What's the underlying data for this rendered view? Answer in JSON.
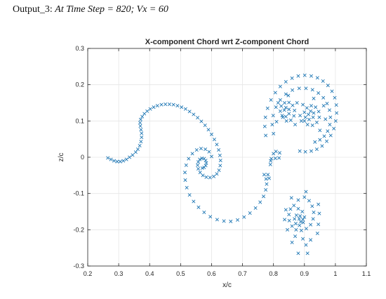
{
  "caption": {
    "label": "Output_3:",
    "description": "At Time Step = 820; Vx = 60"
  },
  "colors": {
    "marker": "#1f77b4",
    "axis": "#262626",
    "grid": "#e6e6e6",
    "background": "#ffffff"
  },
  "chart_data": {
    "type": "scatter",
    "marker": "x",
    "title": "X-component Chord wrt Z-component Chord",
    "xlabel": "x/c",
    "ylabel": "z/c",
    "xlim": [
      0.2,
      1.1
    ],
    "ylim": [
      -0.3,
      0.3
    ],
    "xticks": [
      0.2,
      0.3,
      0.4,
      0.5,
      0.6,
      0.7,
      0.8,
      0.9,
      1,
      1.1
    ],
    "yticks": [
      -0.3,
      -0.2,
      -0.1,
      0,
      0.1,
      0.2,
      0.3
    ],
    "xtick_labels": [
      "0.2",
      "0.3",
      "0.4",
      "0.5",
      "0.6",
      "0.7",
      "0.8",
      "0.9",
      "1",
      "1.1"
    ],
    "ytick_labels": [
      "-0.3",
      "-0.2",
      "-0.1",
      "0",
      "0.1",
      "0.2",
      "0.3"
    ],
    "grid": true,
    "series": [
      {
        "points": [
          [
            0.265,
            -0.002
          ],
          [
            0.275,
            -0.006
          ],
          [
            0.285,
            -0.01
          ],
          [
            0.295,
            -0.012
          ],
          [
            0.305,
            -0.012
          ],
          [
            0.315,
            -0.01
          ],
          [
            0.325,
            -0.006
          ],
          [
            0.335,
            0.0
          ],
          [
            0.345,
            0.006
          ],
          [
            0.355,
            0.014
          ],
          [
            0.362,
            0.022
          ],
          [
            0.368,
            0.032
          ],
          [
            0.372,
            0.043
          ],
          [
            0.374,
            0.055
          ],
          [
            0.374,
            0.066
          ],
          [
            0.372,
            0.076
          ],
          [
            0.37,
            0.086
          ],
          [
            0.369,
            0.095
          ],
          [
            0.371,
            0.104
          ],
          [
            0.376,
            0.112
          ],
          [
            0.383,
            0.12
          ],
          [
            0.392,
            0.127
          ],
          [
            0.402,
            0.133
          ],
          [
            0.413,
            0.138
          ],
          [
            0.425,
            0.142
          ],
          [
            0.438,
            0.145
          ],
          [
            0.451,
            0.146
          ],
          [
            0.464,
            0.146
          ],
          [
            0.477,
            0.145
          ],
          [
            0.49,
            0.142
          ],
          [
            0.503,
            0.138
          ],
          [
            0.516,
            0.133
          ],
          [
            0.529,
            0.126
          ],
          [
            0.542,
            0.118
          ],
          [
            0.555,
            0.109
          ],
          [
            0.567,
            0.099
          ],
          [
            0.579,
            0.088
          ],
          [
            0.59,
            0.076
          ],
          [
            0.6,
            0.063
          ],
          [
            0.609,
            0.049
          ],
          [
            0.617,
            0.035
          ],
          [
            0.623,
            0.02
          ],
          [
            0.627,
            0.005
          ],
          [
            0.629,
            -0.009
          ],
          [
            0.628,
            -0.023
          ],
          [
            0.624,
            -0.036
          ],
          [
            0.617,
            -0.046
          ],
          [
            0.607,
            -0.053
          ],
          [
            0.595,
            -0.056
          ],
          [
            0.583,
            -0.055
          ],
          [
            0.572,
            -0.05
          ],
          [
            0.563,
            -0.042
          ],
          [
            0.557,
            -0.032
          ],
          [
            0.555,
            -0.022
          ],
          [
            0.557,
            -0.013
          ],
          [
            0.562,
            -0.006
          ],
          [
            0.569,
            -0.003
          ],
          [
            0.576,
            -0.004
          ],
          [
            0.581,
            -0.009
          ],
          [
            0.583,
            -0.016
          ],
          [
            0.581,
            -0.023
          ],
          [
            0.576,
            -0.028
          ],
          [
            0.57,
            -0.03
          ],
          [
            0.6,
            0.002
          ],
          [
            0.592,
            0.015
          ],
          [
            0.58,
            0.022
          ],
          [
            0.566,
            0.024
          ],
          [
            0.552,
            0.02
          ],
          [
            0.538,
            0.01
          ],
          [
            0.526,
            -0.004
          ],
          [
            0.518,
            -0.022
          ],
          [
            0.514,
            -0.042
          ],
          [
            0.515,
            -0.063
          ],
          [
            0.52,
            -0.084
          ],
          [
            0.529,
            -0.104
          ],
          [
            0.542,
            -0.122
          ],
          [
            0.558,
            -0.138
          ],
          [
            0.576,
            -0.152
          ],
          [
            0.596,
            -0.164
          ],
          [
            0.618,
            -0.172
          ],
          [
            0.64,
            -0.176
          ],
          [
            0.662,
            -0.177
          ],
          [
            0.684,
            -0.173
          ],
          [
            0.705,
            -0.165
          ],
          [
            0.724,
            -0.154
          ],
          [
            0.742,
            -0.14
          ],
          [
            0.757,
            -0.124
          ],
          [
            0.768,
            -0.108
          ],
          [
            0.775,
            -0.09
          ],
          [
            0.778,
            -0.074
          ],
          [
            0.776,
            -0.06
          ],
          [
            0.77,
            -0.048
          ],
          [
            0.782,
            -0.048
          ],
          [
            0.786,
            -0.058
          ],
          [
            0.79,
            -0.02
          ],
          [
            0.793,
            -0.004
          ],
          [
            0.8,
            0.01
          ],
          [
            0.808,
            0.016
          ],
          [
            0.82,
            0.012
          ],
          [
            0.818,
            -0.002
          ],
          [
            0.806,
            -0.003
          ],
          [
            0.791,
            -0.01
          ],
          [
            0.775,
            0.06
          ],
          [
            0.772,
            0.085
          ],
          [
            0.774,
            0.11
          ],
          [
            0.781,
            0.135
          ],
          [
            0.792,
            0.158
          ],
          [
            0.806,
            0.178
          ],
          [
            0.822,
            0.195
          ],
          [
            0.84,
            0.208
          ],
          [
            0.86,
            0.218
          ],
          [
            0.88,
            0.224
          ],
          [
            0.901,
            0.226
          ],
          [
            0.922,
            0.224
          ],
          [
            0.942,
            0.219
          ],
          [
            0.96,
            0.21
          ],
          [
            0.976,
            0.198
          ],
          [
            0.989,
            0.182
          ],
          [
            0.998,
            0.164
          ],
          [
            1.003,
            0.144
          ],
          [
            1.004,
            0.122
          ],
          [
            1.001,
            0.1
          ],
          [
            0.995,
            0.079
          ],
          [
            0.985,
            0.06
          ],
          [
            0.972,
            0.044
          ],
          [
            0.957,
            0.031
          ],
          [
            0.94,
            0.022
          ],
          [
            0.922,
            0.017
          ],
          [
            0.903,
            0.015
          ],
          [
            0.885,
            0.017
          ],
          [
            0.8,
            0.065
          ],
          [
            0.796,
            0.09
          ],
          [
            0.799,
            0.115
          ],
          [
            0.808,
            0.138
          ],
          [
            0.822,
            0.158
          ],
          [
            0.84,
            0.174
          ],
          [
            0.861,
            0.185
          ],
          [
            0.883,
            0.19
          ],
          [
            0.905,
            0.19
          ],
          [
            0.926,
            0.186
          ],
          [
            0.945,
            0.177
          ],
          [
            0.961,
            0.164
          ],
          [
            0.973,
            0.148
          ],
          [
            0.981,
            0.13
          ],
          [
            0.984,
            0.11
          ],
          [
            0.982,
            0.09
          ],
          [
            0.975,
            0.072
          ],
          [
            0.964,
            0.058
          ],
          [
            0.95,
            0.048
          ],
          [
            0.934,
            0.042
          ],
          [
            0.83,
            0.11
          ],
          [
            0.842,
            0.1
          ],
          [
            0.856,
            0.102
          ],
          [
            0.866,
            0.114
          ],
          [
            0.868,
            0.129
          ],
          [
            0.862,
            0.143
          ],
          [
            0.85,
            0.151
          ],
          [
            0.836,
            0.15
          ],
          [
            0.825,
            0.141
          ],
          [
            0.822,
            0.127
          ],
          [
            0.828,
            0.115
          ],
          [
            0.84,
            0.112
          ],
          [
            0.85,
            0.12
          ],
          [
            0.85,
            0.132
          ],
          [
            0.84,
            0.137
          ],
          [
            0.835,
            0.13
          ],
          [
            0.81,
            0.098
          ],
          [
            0.815,
            0.15
          ],
          [
            0.848,
            0.17
          ],
          [
            0.876,
            0.15
          ],
          [
            0.886,
            0.115
          ],
          [
            0.87,
            0.09
          ],
          [
            0.9,
            0.1
          ],
          [
            0.91,
            0.09
          ],
          [
            0.926,
            0.088
          ],
          [
            0.94,
            0.096
          ],
          [
            0.948,
            0.11
          ],
          [
            0.946,
            0.126
          ],
          [
            0.936,
            0.138
          ],
          [
            0.922,
            0.142
          ],
          [
            0.908,
            0.136
          ],
          [
            0.9,
            0.124
          ],
          [
            0.903,
            0.11
          ],
          [
            0.915,
            0.104
          ],
          [
            0.928,
            0.11
          ],
          [
            0.93,
            0.122
          ],
          [
            0.92,
            0.127
          ],
          [
            0.913,
            0.118
          ],
          [
            0.89,
            0.1
          ],
          [
            0.895,
            0.145
          ],
          [
            0.93,
            0.162
          ],
          [
            0.962,
            0.142
          ],
          [
            0.968,
            0.105
          ],
          [
            0.95,
            0.074
          ],
          [
            0.88,
            -0.118
          ],
          [
            0.9,
            -0.11
          ],
          [
            0.915,
            -0.12
          ],
          [
            0.925,
            -0.135
          ],
          [
            0.93,
            -0.152
          ],
          [
            0.928,
            -0.17
          ],
          [
            0.92,
            -0.186
          ],
          [
            0.906,
            -0.197
          ],
          [
            0.89,
            -0.202
          ],
          [
            0.873,
            -0.2
          ],
          [
            0.86,
            -0.19
          ],
          [
            0.851,
            -0.175
          ],
          [
            0.85,
            -0.158
          ],
          [
            0.855,
            -0.143
          ],
          [
            0.866,
            -0.133
          ],
          [
            0.88,
            -0.142
          ],
          [
            0.893,
            -0.15
          ],
          [
            0.9,
            -0.165
          ],
          [
            0.896,
            -0.18
          ],
          [
            0.884,
            -0.188
          ],
          [
            0.872,
            -0.183
          ],
          [
            0.868,
            -0.17
          ],
          [
            0.874,
            -0.16
          ],
          [
            0.886,
            -0.162
          ],
          [
            0.895,
            -0.172
          ],
          [
            0.888,
            -0.178
          ],
          [
            0.883,
            -0.17
          ],
          [
            0.948,
            -0.155
          ],
          [
            0.945,
            -0.185
          ],
          [
            0.942,
            -0.21
          ],
          [
            0.86,
            -0.235
          ],
          [
            0.905,
            -0.242
          ],
          [
            0.92,
            -0.228
          ],
          [
            0.895,
            -0.225
          ],
          [
            0.87,
            -0.218
          ],
          [
            0.845,
            -0.2
          ],
          [
            0.836,
            -0.172
          ],
          [
            0.84,
            -0.145
          ],
          [
            0.858,
            -0.112
          ],
          [
            0.905,
            -0.095
          ],
          [
            0.945,
            -0.13
          ],
          [
            0.88,
            -0.265
          ],
          [
            0.91,
            -0.265
          ]
        ]
      }
    ]
  }
}
